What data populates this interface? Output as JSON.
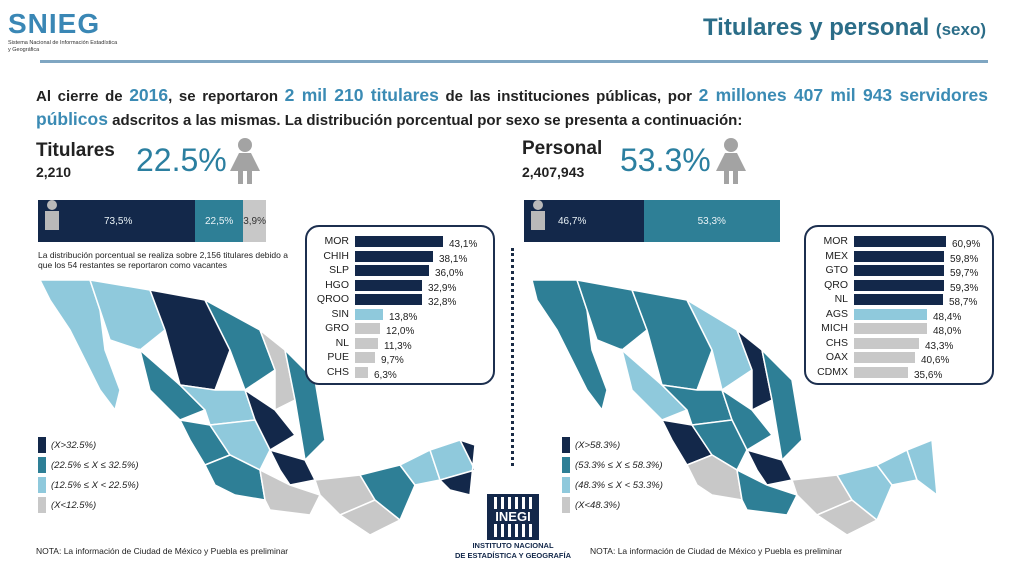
{
  "brand": {
    "logo": "SNIEG",
    "subtitle": "Sistema Nacional de Información Estadística y Geográfica"
  },
  "header": {
    "title": "Titulares y personal",
    "title_suffix": "(sexo)"
  },
  "intro": {
    "p1": "Al cierre de",
    "year": "2016",
    "p2": ", se reportaron",
    "holders": "2 mil 210 titulares",
    "p3": "de las instituciones públicas, por",
    "staff": "2 millones 407 mil 943 servidores públicos",
    "p4": "adscritos a las mismas. La distribución porcentual por sexo se presenta a continuación:"
  },
  "left_panel": {
    "label": "Titulares",
    "count": "2,210",
    "female_pct": "22.5%",
    "bar_segments": [
      {
        "text": "73,5%",
        "value": 73.5,
        "color": "#13284a"
      },
      {
        "text": "22,5%",
        "value": 22.5,
        "color": "#2e7f96"
      },
      {
        "text": "3,9%",
        "value": 3.9,
        "color": "#c8c8c8"
      }
    ],
    "bar_note": "La distribución porcentual se realiza sobre 2,156 titulares debido a que los 54 restantes se reportaron como vacantes",
    "ranking": [
      {
        "state": "MOR",
        "value": 43.1,
        "text": "43,1%",
        "color": "#13284a"
      },
      {
        "state": "CHIH",
        "value": 38.1,
        "text": "38,1%",
        "color": "#13284a"
      },
      {
        "state": "SLP",
        "value": 36.0,
        "text": "36,0%",
        "color": "#13284a"
      },
      {
        "state": "HGO",
        "value": 32.9,
        "text": "32,9%",
        "color": "#13284a"
      },
      {
        "state": "QROO",
        "value": 32.8,
        "text": "32,8%",
        "color": "#13284a"
      },
      {
        "state": "SIN",
        "value": 13.8,
        "text": "13,8%",
        "color": "#8fc9dc"
      },
      {
        "state": "GRO",
        "value": 12.0,
        "text": "12,0%",
        "color": "#c8c8c8"
      },
      {
        "state": "NL",
        "value": 11.3,
        "text": "11,3%",
        "color": "#c8c8c8"
      },
      {
        "state": "PUE",
        "value": 9.7,
        "text": "9,7%",
        "color": "#c8c8c8"
      },
      {
        "state": "CHS",
        "value": 6.3,
        "text": "6,3%",
        "color": "#c8c8c8"
      }
    ],
    "legend": [
      {
        "text": "(X>32.5%)",
        "color": "#13284a"
      },
      {
        "text": "(22.5% ≤ X ≤ 32.5%)",
        "color": "#2e7f96"
      },
      {
        "text": "(12.5% ≤ X < 22.5%)",
        "color": "#8fc9dc"
      },
      {
        "text": "(X<12.5%)",
        "color": "#c8c8c8"
      }
    ],
    "footnote": "NOTA: La información de Ciudad de México y Puebla es preliminar"
  },
  "right_panel": {
    "label": "Personal",
    "count": "2,407,943",
    "female_pct": "53.3%",
    "bar_segments": [
      {
        "text": "46,7%",
        "value": 46.7,
        "color": "#13284a"
      },
      {
        "text": "53,3%",
        "value": 53.3,
        "color": "#2e7f96"
      }
    ],
    "ranking": [
      {
        "state": "MOR",
        "value": 60.9,
        "text": "60,9%",
        "color": "#13284a"
      },
      {
        "state": "MEX",
        "value": 59.8,
        "text": "59,8%",
        "color": "#13284a"
      },
      {
        "state": "GTO",
        "value": 59.7,
        "text": "59,7%",
        "color": "#13284a"
      },
      {
        "state": "QRO",
        "value": 59.3,
        "text": "59,3%",
        "color": "#13284a"
      },
      {
        "state": "NL",
        "value": 58.7,
        "text": "58,7%",
        "color": "#13284a"
      },
      {
        "state": "AGS",
        "value": 48.4,
        "text": "48,4%",
        "color": "#8fc9dc"
      },
      {
        "state": "MICH",
        "value": 48.0,
        "text": "48,0%",
        "color": "#c8c8c8"
      },
      {
        "state": "CHS",
        "value": 43.3,
        "text": "43,3%",
        "color": "#c8c8c8"
      },
      {
        "state": "OAX",
        "value": 40.6,
        "text": "40,6%",
        "color": "#c8c8c8"
      },
      {
        "state": "CDMX",
        "value": 35.6,
        "text": "35,6%",
        "color": "#c8c8c8"
      }
    ],
    "legend": [
      {
        "text": "(X>58.3%)",
        "color": "#13284a"
      },
      {
        "text": "(53.3% ≤ X ≤ 58.3%)",
        "color": "#2e7f96"
      },
      {
        "text": "(48.3% ≤ X < 53.3%)",
        "color": "#8fc9dc"
      },
      {
        "text": "(X<48.3%)",
        "color": "#c8c8c8"
      }
    ],
    "footnote": "NOTA: La información de Ciudad de México y Puebla es preliminar"
  },
  "footer_logo": {
    "mark": "INEGI",
    "line1": "INSTITUTO NACIONAL",
    "line2": "DE ESTADÍSTICA Y GEOGRAFÍA"
  }
}
